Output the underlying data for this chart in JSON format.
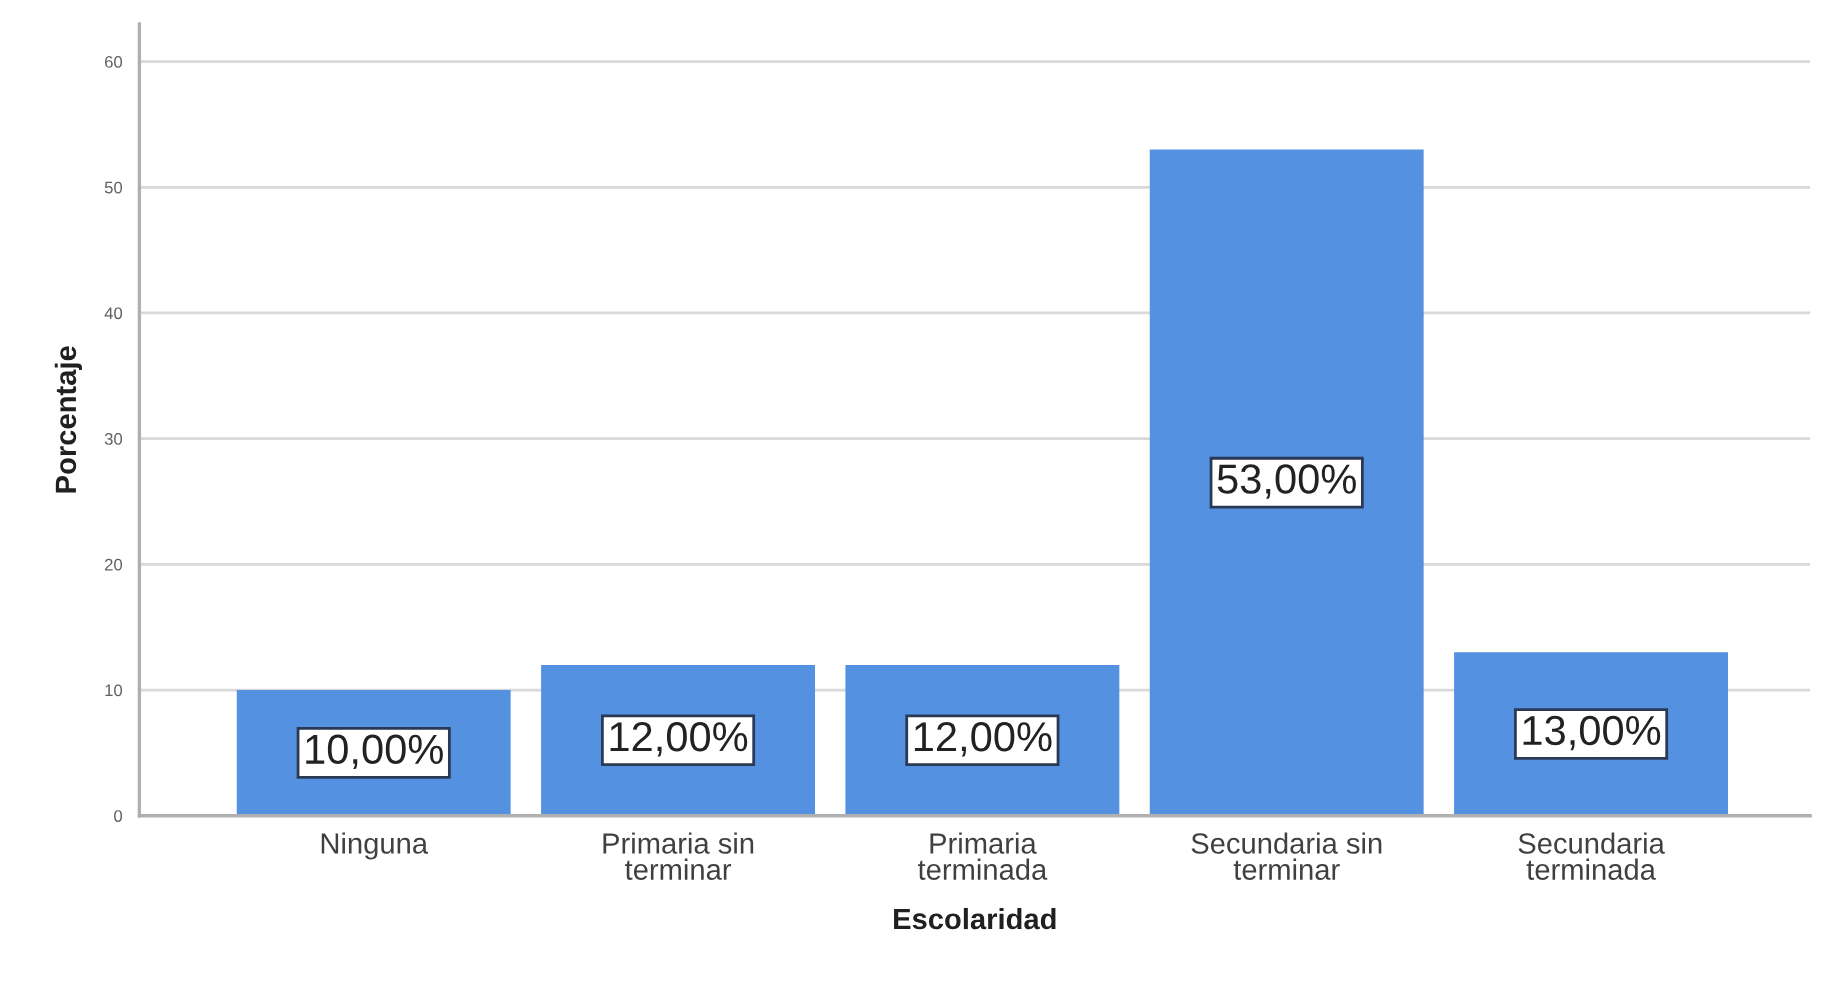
{
  "chart_data": {
    "type": "bar",
    "xlabel": "Escolaridad",
    "ylabel": "Porcentaje",
    "categories": [
      "Ninguna",
      "Primaria sin terminar",
      "Primaria terminada",
      "Secundaria sin terminar",
      "Secundaria terminada"
    ],
    "values": [
      10,
      12,
      12,
      53,
      13
    ],
    "color": "#5591e1",
    "value_labels": [
      "10,00%",
      "12,00%",
      "12,00%",
      "53,00%",
      "13,00%"
    ],
    "ylim": [
      0,
      63
    ],
    "yticks": [
      0,
      10,
      20,
      30,
      40,
      50,
      60
    ],
    "grid": "y"
  }
}
